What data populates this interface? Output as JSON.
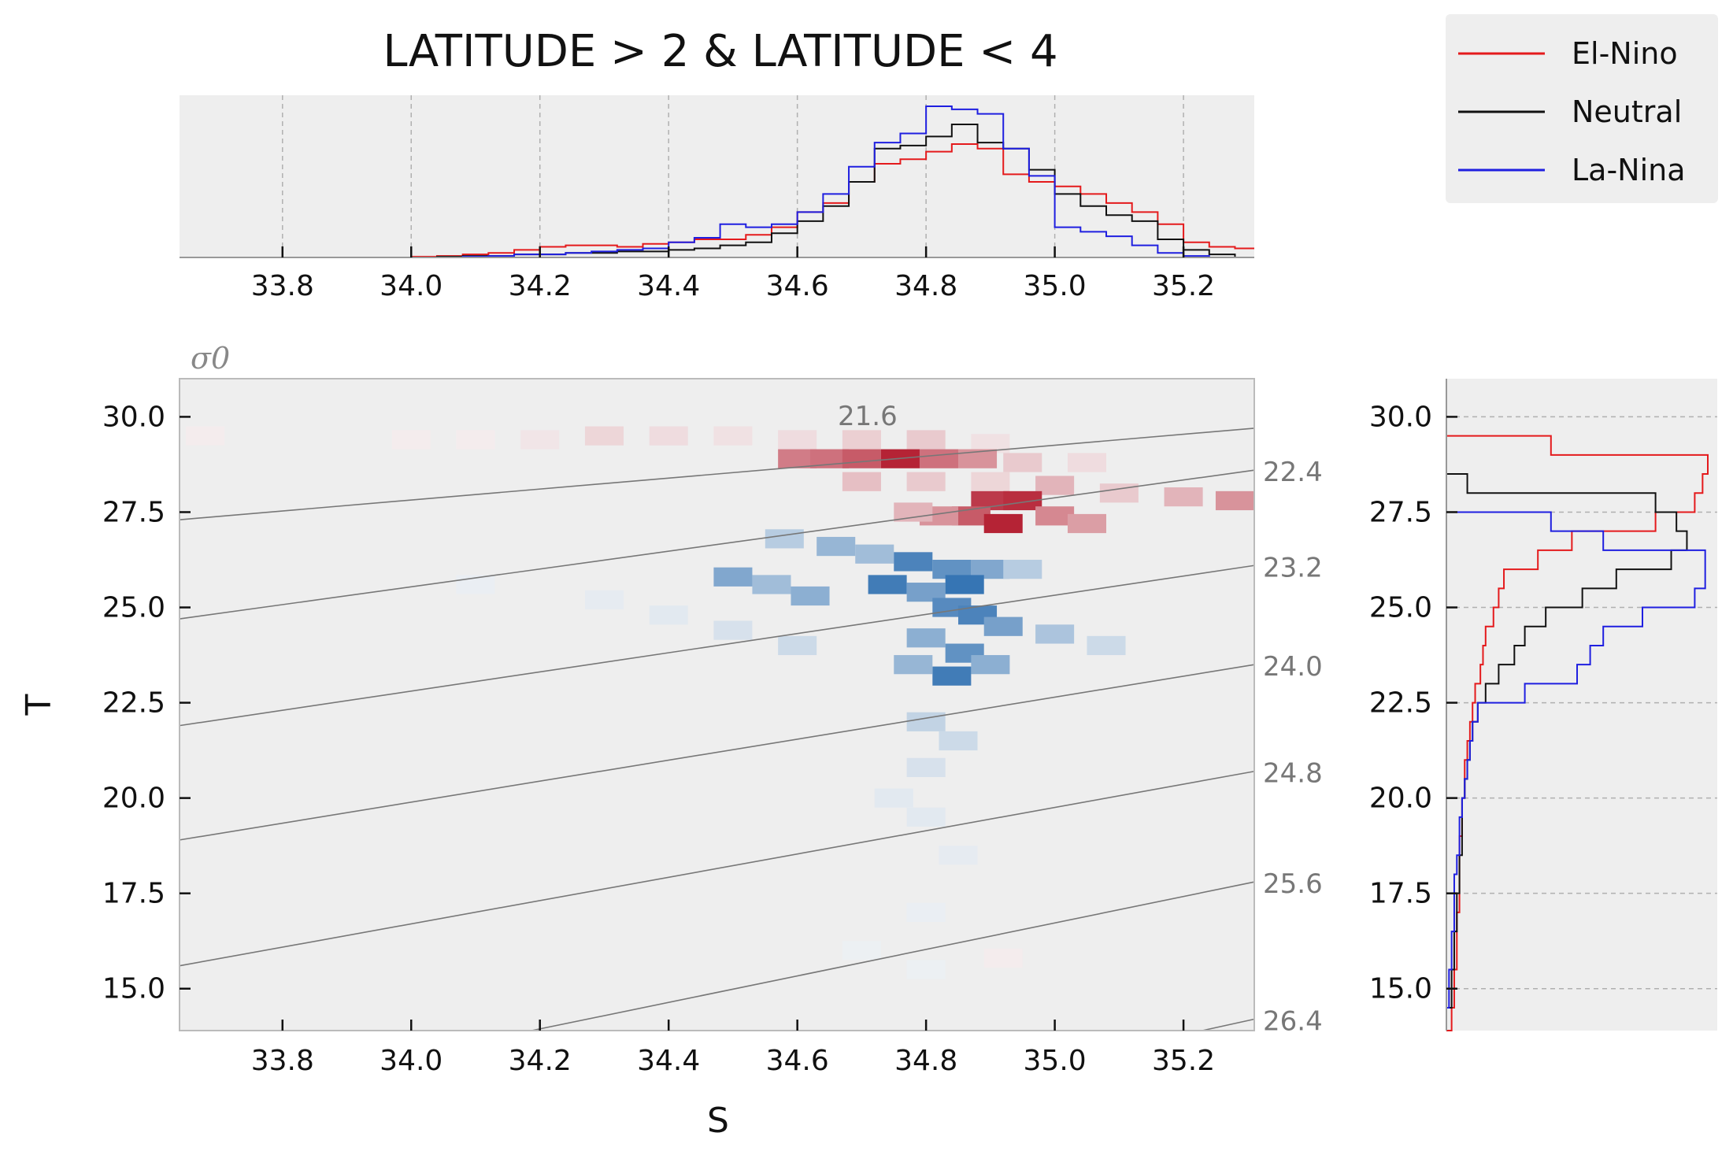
{
  "chart_data": [
    {
      "type": "histogram",
      "panel": "top-marginal",
      "title": "LATITUDE > 2 & LATITUDE < 4",
      "xlim": [
        33.64,
        35.31
      ],
      "x_ticks": [
        "33.8",
        "34.0",
        "34.2",
        "34.4",
        "34.6",
        "34.8",
        "35.0",
        "35.2"
      ],
      "x_tick_values": [
        33.8,
        34.0,
        34.2,
        34.4,
        34.6,
        34.8,
        35.0,
        35.2
      ],
      "ylim": [
        0,
        1.0
      ],
      "grid": "vertical dashed",
      "bins_edges": [
        34.0,
        34.04,
        34.08,
        34.12,
        34.16,
        34.2,
        34.24,
        34.28,
        34.32,
        34.36,
        34.4,
        34.44,
        34.48,
        34.52,
        34.56,
        34.6,
        34.64,
        34.68,
        34.72,
        34.76,
        34.8,
        34.84,
        34.88,
        34.92,
        34.96,
        35.0,
        35.04,
        35.08,
        35.12,
        35.16,
        35.2,
        35.24,
        35.28,
        35.31
      ],
      "series": [
        {
          "name": "El-Nino",
          "color": "#e41a1c",
          "values": [
            0.005,
            0.01,
            0.02,
            0.03,
            0.05,
            0.07,
            0.08,
            0.08,
            0.07,
            0.09,
            0.1,
            0.12,
            0.12,
            0.15,
            0.2,
            0.3,
            0.36,
            0.5,
            0.62,
            0.65,
            0.7,
            0.75,
            0.72,
            0.55,
            0.5,
            0.47,
            0.42,
            0.36,
            0.3,
            0.22,
            0.1,
            0.07,
            0.06
          ]
        },
        {
          "name": "Neutral",
          "color": "#111111",
          "values": [
            0.0,
            0.005,
            0.01,
            0.01,
            0.02,
            0.02,
            0.03,
            0.03,
            0.04,
            0.04,
            0.05,
            0.06,
            0.08,
            0.1,
            0.16,
            0.24,
            0.34,
            0.5,
            0.72,
            0.74,
            0.8,
            0.88,
            0.76,
            0.72,
            0.58,
            0.42,
            0.34,
            0.28,
            0.24,
            0.12,
            0.05,
            0.02,
            0.0
          ]
        },
        {
          "name": "La-Nina",
          "color": "#1f1fe0",
          "values": [
            0.0,
            0.0,
            0.005,
            0.01,
            0.02,
            0.02,
            0.03,
            0.04,
            0.05,
            0.06,
            0.1,
            0.13,
            0.22,
            0.2,
            0.22,
            0.3,
            0.42,
            0.6,
            0.76,
            0.82,
            1.0,
            0.98,
            0.95,
            0.72,
            0.54,
            0.2,
            0.17,
            0.14,
            0.08,
            0.03,
            0.01,
            0.0,
            0.0
          ]
        }
      ]
    },
    {
      "type": "heatmap",
      "panel": "main",
      "xlabel": "S",
      "ylabel": "T",
      "xlim": [
        33.64,
        35.31
      ],
      "ylim": [
        13.9,
        31.0
      ],
      "x_ticks": [
        "33.8",
        "34.0",
        "34.2",
        "34.4",
        "34.6",
        "34.8",
        "35.0",
        "35.2"
      ],
      "x_tick_values": [
        33.8,
        34.0,
        34.2,
        34.4,
        34.6,
        34.8,
        35.0,
        35.2
      ],
      "y_ticks": [
        "15.0",
        "17.5",
        "20.0",
        "22.5",
        "25.0",
        "27.5",
        "30.0"
      ],
      "y_tick_values": [
        15.0,
        17.5,
        20.0,
        22.5,
        25.0,
        27.5,
        30.0
      ],
      "colormap": "diverging red (El-Nino excess) to blue (La-Nina excess)",
      "cells_note": "approximate values in [-1, 1]; positive = red, negative = blue",
      "cells": [
        [
          33.68,
          29.5,
          0.05
        ],
        [
          34.0,
          29.4,
          0.05
        ],
        [
          34.1,
          29.4,
          0.05
        ],
        [
          34.2,
          29.4,
          0.08
        ],
        [
          34.3,
          29.5,
          0.15
        ],
        [
          34.4,
          29.5,
          0.12
        ],
        [
          34.5,
          29.5,
          0.1
        ],
        [
          34.6,
          29.4,
          0.12
        ],
        [
          34.7,
          29.4,
          0.18
        ],
        [
          34.8,
          29.4,
          0.2
        ],
        [
          34.9,
          29.3,
          0.1
        ],
        [
          34.6,
          28.9,
          0.55
        ],
        [
          34.65,
          28.9,
          0.6
        ],
        [
          34.7,
          28.9,
          0.7
        ],
        [
          34.76,
          28.9,
          0.95
        ],
        [
          34.82,
          28.9,
          0.6
        ],
        [
          34.88,
          28.9,
          0.45
        ],
        [
          34.95,
          28.8,
          0.2
        ],
        [
          35.05,
          28.8,
          0.12
        ],
        [
          34.7,
          28.3,
          0.25
        ],
        [
          34.8,
          28.3,
          0.2
        ],
        [
          34.9,
          28.3,
          0.15
        ],
        [
          35.0,
          28.2,
          0.3
        ],
        [
          35.1,
          28.0,
          0.2
        ],
        [
          35.2,
          27.9,
          0.3
        ],
        [
          35.28,
          27.8,
          0.45
        ],
        [
          34.9,
          27.8,
          0.85
        ],
        [
          34.95,
          27.8,
          0.9
        ],
        [
          34.87,
          27.4,
          0.7
        ],
        [
          34.92,
          27.2,
          0.95
        ],
        [
          35.0,
          27.4,
          0.5
        ],
        [
          35.05,
          27.2,
          0.4
        ],
        [
          34.82,
          27.4,
          0.45
        ],
        [
          34.78,
          27.5,
          0.3
        ],
        [
          34.58,
          26.8,
          -0.3
        ],
        [
          34.66,
          26.6,
          -0.45
        ],
        [
          34.72,
          26.4,
          -0.4
        ],
        [
          34.78,
          26.2,
          -0.8
        ],
        [
          34.84,
          26.0,
          -0.7
        ],
        [
          34.9,
          26.0,
          -0.55
        ],
        [
          34.95,
          26.0,
          -0.3
        ],
        [
          34.5,
          25.8,
          -0.55
        ],
        [
          34.56,
          25.6,
          -0.4
        ],
        [
          34.62,
          25.3,
          -0.5
        ],
        [
          34.74,
          25.6,
          -0.85
        ],
        [
          34.8,
          25.4,
          -0.6
        ],
        [
          34.86,
          25.6,
          -0.9
        ],
        [
          34.84,
          25.0,
          -0.75
        ],
        [
          34.88,
          24.8,
          -0.8
        ],
        [
          34.92,
          24.5,
          -0.6
        ],
        [
          34.8,
          24.2,
          -0.5
        ],
        [
          34.86,
          23.8,
          -0.7
        ],
        [
          34.9,
          23.5,
          -0.5
        ],
        [
          34.84,
          23.2,
          -0.85
        ],
        [
          34.78,
          23.5,
          -0.45
        ],
        [
          35.0,
          24.3,
          -0.35
        ],
        [
          35.08,
          24.0,
          -0.2
        ],
        [
          34.6,
          24.0,
          -0.2
        ],
        [
          34.5,
          24.4,
          -0.15
        ],
        [
          34.4,
          24.8,
          -0.1
        ],
        [
          34.3,
          25.2,
          -0.08
        ],
        [
          34.1,
          25.6,
          -0.06
        ],
        [
          34.8,
          22.0,
          -0.25
        ],
        [
          34.85,
          21.5,
          -0.2
        ],
        [
          34.8,
          20.8,
          -0.15
        ],
        [
          34.75,
          20.0,
          -0.1
        ],
        [
          34.8,
          19.5,
          -0.1
        ],
        [
          34.85,
          18.5,
          -0.08
        ],
        [
          34.8,
          17.0,
          -0.06
        ],
        [
          34.8,
          15.5,
          -0.05
        ],
        [
          34.7,
          16.0,
          -0.05
        ],
        [
          34.92,
          15.8,
          0.05
        ]
      ]
    },
    {
      "type": "contour",
      "panel": "main-overlay",
      "name": "σ0 isopycnals",
      "sigma_label": "σ0",
      "levels": [
        "21.6",
        "22.4",
        "23.2",
        "24.0",
        "24.8",
        "25.6",
        "26.4"
      ],
      "level_values": [
        21.6,
        22.4,
        23.2,
        24.0,
        24.8,
        25.6,
        26.4
      ]
    },
    {
      "type": "histogram",
      "panel": "right-marginal",
      "orientation": "horizontal",
      "ylim": [
        13.9,
        31.0
      ],
      "y_ticks": [
        "15.0",
        "17.5",
        "20.0",
        "22.5",
        "25.0",
        "27.5",
        "30.0"
      ],
      "y_tick_values": [
        15.0,
        17.5,
        20.0,
        22.5,
        25.0,
        27.5,
        30.0
      ],
      "grid": "horizontal dashed",
      "bins_edges": [
        13.9,
        14.5,
        15.0,
        15.5,
        16.0,
        16.5,
        17.0,
        17.5,
        18.0,
        18.5,
        19.0,
        19.5,
        20.0,
        20.5,
        21.0,
        21.5,
        22.0,
        22.5,
        23.0,
        23.5,
        24.0,
        24.5,
        25.0,
        25.5,
        26.0,
        26.5,
        27.0,
        27.5,
        28.0,
        28.5,
        29.0,
        29.5
      ],
      "series": [
        {
          "name": "El-Nino",
          "color": "#e41a1c",
          "values": [
            0.02,
            0.03,
            0.03,
            0.04,
            0.04,
            0.04,
            0.05,
            0.05,
            0.05,
            0.05,
            0.06,
            0.06,
            0.07,
            0.07,
            0.08,
            0.09,
            0.1,
            0.11,
            0.13,
            0.14,
            0.15,
            0.18,
            0.2,
            0.22,
            0.35,
            0.48,
            0.8,
            0.95,
            0.98,
            1.0,
            0.4
          ]
        },
        {
          "name": "Neutral",
          "color": "#111111",
          "values": [
            0.0,
            0.02,
            0.02,
            0.03,
            0.03,
            0.04,
            0.04,
            0.05,
            0.05,
            0.06,
            0.06,
            0.06,
            0.07,
            0.08,
            0.09,
            0.1,
            0.12,
            0.15,
            0.2,
            0.26,
            0.3,
            0.38,
            0.52,
            0.65,
            0.86,
            0.92,
            0.88,
            0.8,
            0.08,
            0.0,
            0.0
          ]
        },
        {
          "name": "La-Nina",
          "color": "#1f1fe0",
          "values": [
            0.0,
            0.01,
            0.01,
            0.02,
            0.02,
            0.03,
            0.03,
            0.03,
            0.04,
            0.05,
            0.05,
            0.06,
            0.07,
            0.08,
            0.09,
            0.1,
            0.12,
            0.3,
            0.5,
            0.55,
            0.6,
            0.75,
            0.95,
            0.99,
            0.99,
            0.6,
            0.4,
            0.0,
            0.0,
            0.0,
            0.0
          ]
        }
      ]
    }
  ],
  "legend": {
    "position": "top-right",
    "items": [
      {
        "label": "El-Nino",
        "color": "#e41a1c"
      },
      {
        "label": "Neutral",
        "color": "#111111"
      },
      {
        "label": "La-Nina",
        "color": "#1f1fe0"
      }
    ]
  },
  "colors": {
    "panel_background": "#eeeeee",
    "grid": "#b0b0b0",
    "isopycnal": "#777777",
    "positive": "#b2182b",
    "negative": "#2166ac"
  }
}
